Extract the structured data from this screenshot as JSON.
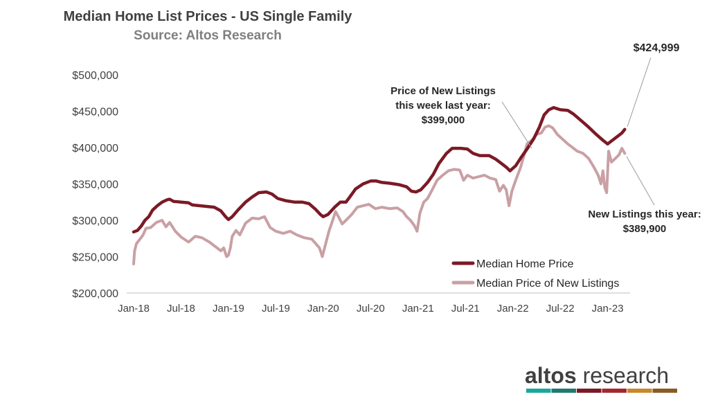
{
  "chart_data": {
    "type": "line",
    "title": "Median Home List Prices - US Single Family",
    "subtitle": "Source: Altos Research",
    "ylim": [
      200000,
      500000
    ],
    "yticks": [
      {
        "value": 500000,
        "label": "$500,000"
      },
      {
        "value": 450000,
        "label": "$450,000"
      },
      {
        "value": 400000,
        "label": "$400,000"
      },
      {
        "value": 350000,
        "label": "$350,000"
      },
      {
        "value": 300000,
        "label": "$300,000"
      },
      {
        "value": 250000,
        "label": "$250,000"
      },
      {
        "value": 200000,
        "label": "$200,000"
      }
    ],
    "xlim": [
      2018.0,
      2023.2
    ],
    "xticks": [
      {
        "value": 2018.0,
        "label": "Jan-18"
      },
      {
        "value": 2018.5,
        "label": "Jul-18"
      },
      {
        "value": 2019.0,
        "label": "Jan-19"
      },
      {
        "value": 2019.5,
        "label": "Jul-19"
      },
      {
        "value": 2020.0,
        "label": "Jan-20"
      },
      {
        "value": 2020.5,
        "label": "Jul-20"
      },
      {
        "value": 2021.0,
        "label": "Jan-21"
      },
      {
        "value": 2021.5,
        "label": "Jul-21"
      },
      {
        "value": 2022.0,
        "label": "Jan-22"
      },
      {
        "value": 2022.5,
        "label": "Jul-22"
      },
      {
        "value": 2023.0,
        "label": "Jan-23"
      }
    ],
    "legend_position": "lower-right",
    "series": [
      {
        "name": "Median Home Price",
        "color": "#7b1a26",
        "points": [
          [
            2018.0,
            284000
          ],
          [
            2018.04,
            286000
          ],
          [
            2018.08,
            292000
          ],
          [
            2018.12,
            300000
          ],
          [
            2018.16,
            305000
          ],
          [
            2018.2,
            314000
          ],
          [
            2018.25,
            320000
          ],
          [
            2018.3,
            325000
          ],
          [
            2018.35,
            328000
          ],
          [
            2018.38,
            329000
          ],
          [
            2018.42,
            326000
          ],
          [
            2018.5,
            325000
          ],
          [
            2018.58,
            324000
          ],
          [
            2018.62,
            321000
          ],
          [
            2018.7,
            320000
          ],
          [
            2018.78,
            319000
          ],
          [
            2018.85,
            318000
          ],
          [
            2018.92,
            313000
          ],
          [
            2018.97,
            305000
          ],
          [
            2019.0,
            301000
          ],
          [
            2019.04,
            305000
          ],
          [
            2019.1,
            314000
          ],
          [
            2019.18,
            325000
          ],
          [
            2019.25,
            332000
          ],
          [
            2019.32,
            338000
          ],
          [
            2019.4,
            339000
          ],
          [
            2019.46,
            336000
          ],
          [
            2019.52,
            330000
          ],
          [
            2019.6,
            327000
          ],
          [
            2019.7,
            325000
          ],
          [
            2019.78,
            325000
          ],
          [
            2019.85,
            323000
          ],
          [
            2019.92,
            315000
          ],
          [
            2019.97,
            308000
          ],
          [
            2020.0,
            305000
          ],
          [
            2020.05,
            308000
          ],
          [
            2020.12,
            318000
          ],
          [
            2020.18,
            325000
          ],
          [
            2020.24,
            325000
          ],
          [
            2020.28,
            332000
          ],
          [
            2020.34,
            343000
          ],
          [
            2020.42,
            350000
          ],
          [
            2020.5,
            354000
          ],
          [
            2020.56,
            354000
          ],
          [
            2020.62,
            352000
          ],
          [
            2020.7,
            351000
          ],
          [
            2020.8,
            349000
          ],
          [
            2020.88,
            346000
          ],
          [
            2020.93,
            340000
          ],
          [
            2020.98,
            339000
          ],
          [
            2021.03,
            342000
          ],
          [
            2021.1,
            352000
          ],
          [
            2021.16,
            363000
          ],
          [
            2021.22,
            378000
          ],
          [
            2021.3,
            392000
          ],
          [
            2021.36,
            399000
          ],
          [
            2021.45,
            399000
          ],
          [
            2021.52,
            398000
          ],
          [
            2021.58,
            392000
          ],
          [
            2021.65,
            389000
          ],
          [
            2021.75,
            389000
          ],
          [
            2021.82,
            384000
          ],
          [
            2021.88,
            378000
          ],
          [
            2021.93,
            373000
          ],
          [
            2021.97,
            368000
          ],
          [
            2022.03,
            375000
          ],
          [
            2022.08,
            385000
          ],
          [
            2022.15,
            398000
          ],
          [
            2022.22,
            412000
          ],
          [
            2022.28,
            428000
          ],
          [
            2022.33,
            445000
          ],
          [
            2022.38,
            452000
          ],
          [
            2022.43,
            455000
          ],
          [
            2022.5,
            452000
          ],
          [
            2022.58,
            451000
          ],
          [
            2022.64,
            446000
          ],
          [
            2022.72,
            437000
          ],
          [
            2022.8,
            428000
          ],
          [
            2022.88,
            418000
          ],
          [
            2022.95,
            410000
          ],
          [
            2023.0,
            405000
          ],
          [
            2023.05,
            410000
          ],
          [
            2023.1,
            415000
          ],
          [
            2023.15,
            420000
          ],
          [
            2023.18,
            425000
          ]
        ]
      },
      {
        "name": "Median Price of New Listings",
        "color": "#c9a0a4",
        "points": [
          [
            2018.0,
            240000
          ],
          [
            2018.01,
            258000
          ],
          [
            2018.03,
            268000
          ],
          [
            2018.06,
            273000
          ],
          [
            2018.1,
            280000
          ],
          [
            2018.13,
            289000
          ],
          [
            2018.18,
            290000
          ],
          [
            2018.24,
            297000
          ],
          [
            2018.3,
            300000
          ],
          [
            2018.34,
            291000
          ],
          [
            2018.38,
            297000
          ],
          [
            2018.44,
            285000
          ],
          [
            2018.5,
            277000
          ],
          [
            2018.58,
            270000
          ],
          [
            2018.65,
            278000
          ],
          [
            2018.72,
            276000
          ],
          [
            2018.8,
            270000
          ],
          [
            2018.88,
            262000
          ],
          [
            2018.92,
            258000
          ],
          [
            2018.95,
            262000
          ],
          [
            2018.98,
            250000
          ],
          [
            2019.0,
            252000
          ],
          [
            2019.02,
            262000
          ],
          [
            2019.04,
            278000
          ],
          [
            2019.08,
            286000
          ],
          [
            2019.12,
            280000
          ],
          [
            2019.18,
            296000
          ],
          [
            2019.25,
            303000
          ],
          [
            2019.32,
            302000
          ],
          [
            2019.38,
            305000
          ],
          [
            2019.44,
            290000
          ],
          [
            2019.5,
            285000
          ],
          [
            2019.58,
            282000
          ],
          [
            2019.65,
            285000
          ],
          [
            2019.72,
            280000
          ],
          [
            2019.8,
            276000
          ],
          [
            2019.88,
            274000
          ],
          [
            2019.92,
            268000
          ],
          [
            2019.96,
            262000
          ],
          [
            2019.99,
            250000
          ],
          [
            2020.02,
            265000
          ],
          [
            2020.06,
            285000
          ],
          [
            2020.1,
            300000
          ],
          [
            2020.13,
            312000
          ],
          [
            2020.16,
            305000
          ],
          [
            2020.2,
            295000
          ],
          [
            2020.24,
            300000
          ],
          [
            2020.3,
            308000
          ],
          [
            2020.36,
            318000
          ],
          [
            2020.42,
            320000
          ],
          [
            2020.48,
            322000
          ],
          [
            2020.55,
            316000
          ],
          [
            2020.62,
            318000
          ],
          [
            2020.7,
            316000
          ],
          [
            2020.78,
            317000
          ],
          [
            2020.84,
            312000
          ],
          [
            2020.88,
            305000
          ],
          [
            2020.92,
            300000
          ],
          [
            2020.96,
            293000
          ],
          [
            2020.99,
            285000
          ],
          [
            2021.02,
            310000
          ],
          [
            2021.06,
            325000
          ],
          [
            2021.1,
            330000
          ],
          [
            2021.15,
            342000
          ],
          [
            2021.2,
            355000
          ],
          [
            2021.26,
            362000
          ],
          [
            2021.32,
            368000
          ],
          [
            2021.38,
            370000
          ],
          [
            2021.44,
            369000
          ],
          [
            2021.48,
            355000
          ],
          [
            2021.52,
            362000
          ],
          [
            2021.58,
            358000
          ],
          [
            2021.64,
            360000
          ],
          [
            2021.7,
            362000
          ],
          [
            2021.76,
            358000
          ],
          [
            2021.82,
            356000
          ],
          [
            2021.86,
            340000
          ],
          [
            2021.9,
            348000
          ],
          [
            2021.93,
            342000
          ],
          [
            2021.96,
            320000
          ],
          [
            2021.99,
            340000
          ],
          [
            2022.03,
            355000
          ],
          [
            2022.08,
            372000
          ],
          [
            2022.12,
            390000
          ],
          [
            2022.15,
            405000
          ],
          [
            2022.2,
            410000
          ],
          [
            2022.25,
            418000
          ],
          [
            2022.3,
            420000
          ],
          [
            2022.34,
            428000
          ],
          [
            2022.38,
            430000
          ],
          [
            2022.42,
            427000
          ],
          [
            2022.47,
            418000
          ],
          [
            2022.52,
            412000
          ],
          [
            2022.58,
            405000
          ],
          [
            2022.63,
            400000
          ],
          [
            2022.68,
            395000
          ],
          [
            2022.74,
            392000
          ],
          [
            2022.8,
            385000
          ],
          [
            2022.86,
            372000
          ],
          [
            2022.9,
            362000
          ],
          [
            2022.93,
            350000
          ],
          [
            2022.95,
            368000
          ],
          [
            2022.97,
            345000
          ],
          [
            2022.99,
            338000
          ],
          [
            2023.01,
            395000
          ],
          [
            2023.04,
            380000
          ],
          [
            2023.08,
            385000
          ],
          [
            2023.12,
            390000
          ],
          [
            2023.15,
            399000
          ],
          [
            2023.18,
            392000
          ]
        ]
      }
    ],
    "annotations": {
      "last_year": {
        "lines": [
          "Price of New Listings",
          "this week last year:"
        ],
        "value": "$399,000"
      },
      "this_year": {
        "line": "New Listings this year:",
        "value": "$389,900"
      },
      "latest": {
        "value": "$424,999"
      }
    }
  },
  "logo": {
    "word1": "altos",
    "word2": " research",
    "bar_colors": [
      "#1aa89b",
      "#1f7a70",
      "#7b1a26",
      "#a3282f",
      "#c9882b",
      "#8b5a24"
    ]
  }
}
